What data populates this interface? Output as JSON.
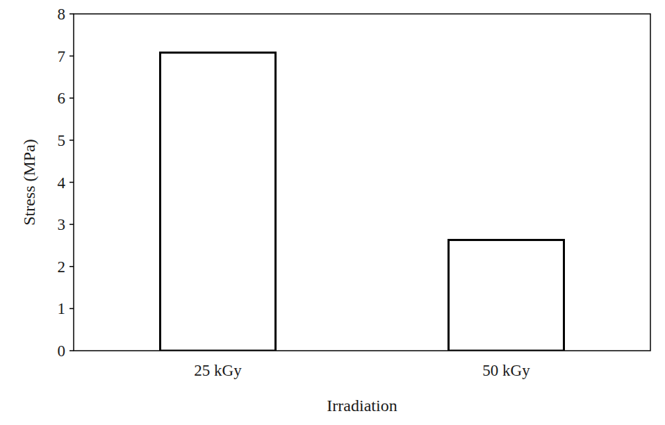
{
  "chart_data": {
    "type": "bar",
    "categories": [
      "25 kGy",
      "50 kGy"
    ],
    "values": [
      7.08,
      2.63
    ],
    "color": "#ffffff",
    "x_label": "Irradiation",
    "y_label": "Stress (MPa)",
    "ylim": [
      0,
      8
    ],
    "yticks": [
      0,
      1,
      2,
      3,
      4,
      5,
      6,
      7,
      8
    ],
    "grid": false
  }
}
